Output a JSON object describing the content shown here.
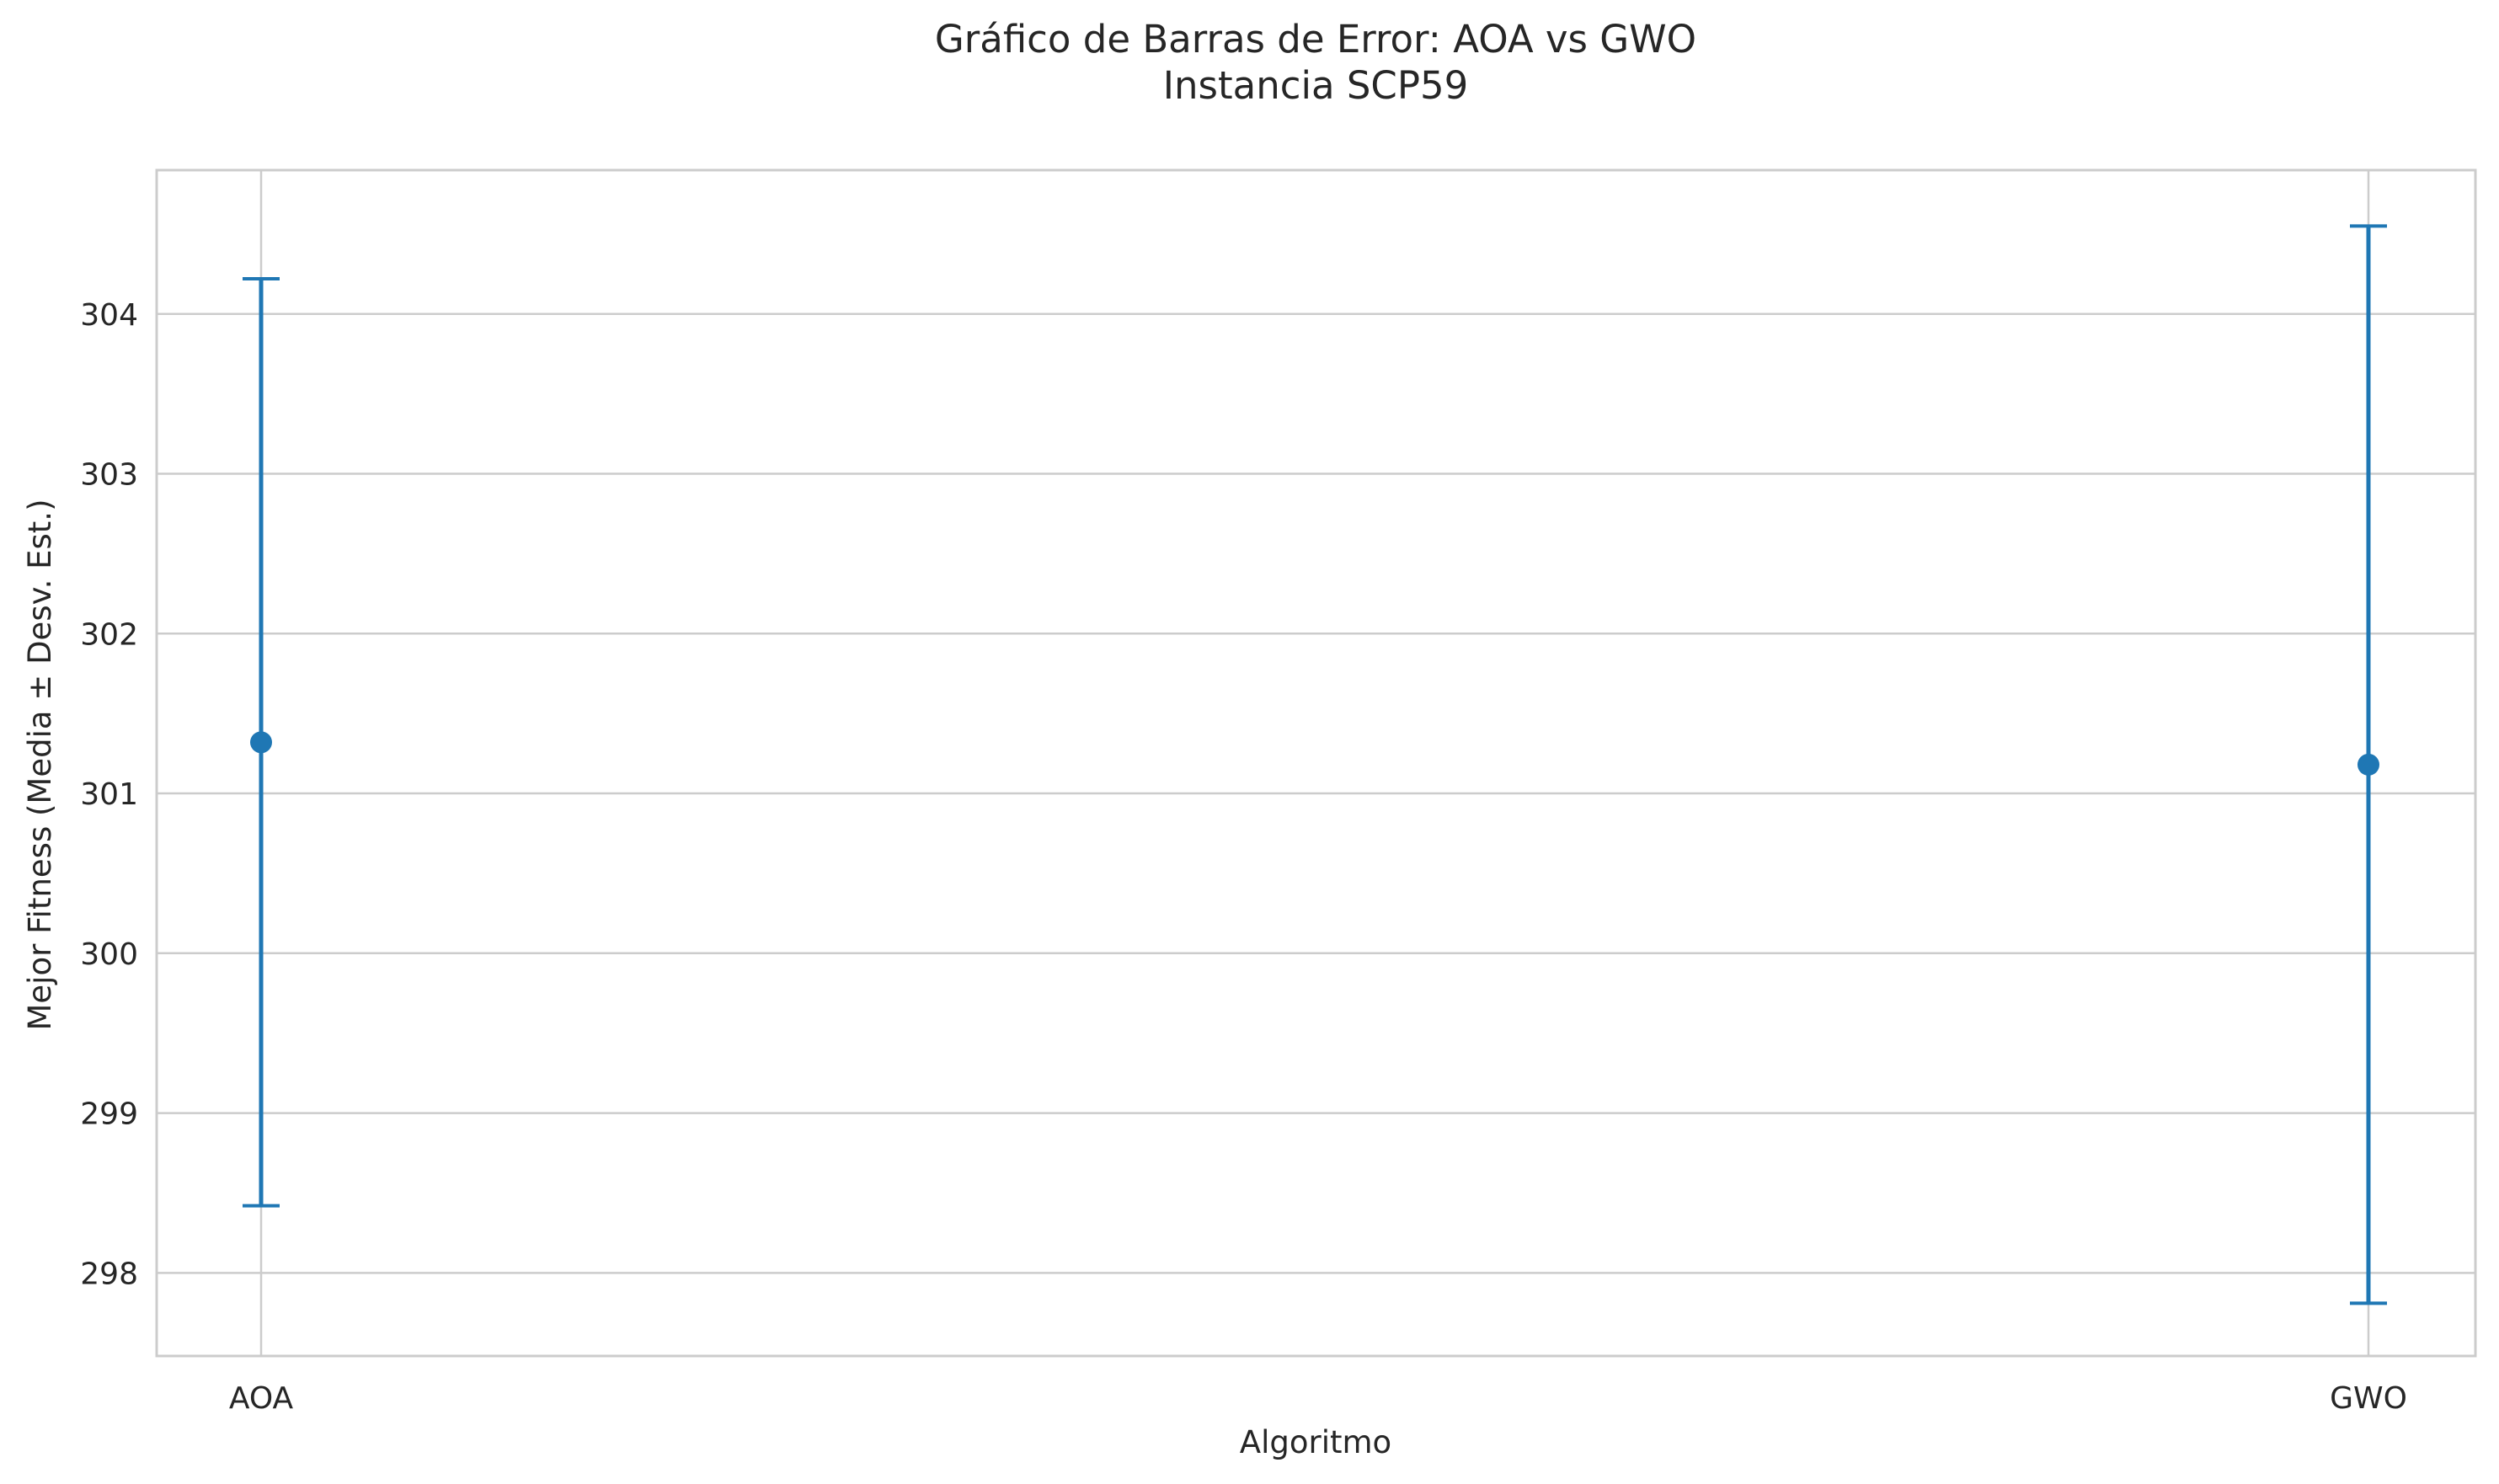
{
  "chart_data": {
    "type": "errorbar",
    "title": "Gráfico de Barras de Error: AOA vs GWO",
    "subtitle": "Instancia SCP59",
    "xlabel": "Algoritmo",
    "ylabel": "Mejor Fitness (Media ± Desv. Est.)",
    "categories": [
      "AOA",
      "GWO"
    ],
    "means": [
      301.32,
      301.18
    ],
    "errors": [
      2.9,
      3.37
    ],
    "ylim": [
      297.48,
      304.9
    ],
    "yticks": [
      298,
      299,
      300,
      301,
      302,
      303,
      304
    ],
    "grid": true,
    "color": "#1f77b4",
    "grid_color": "#cccccc",
    "spine_color": "#cccccc"
  }
}
